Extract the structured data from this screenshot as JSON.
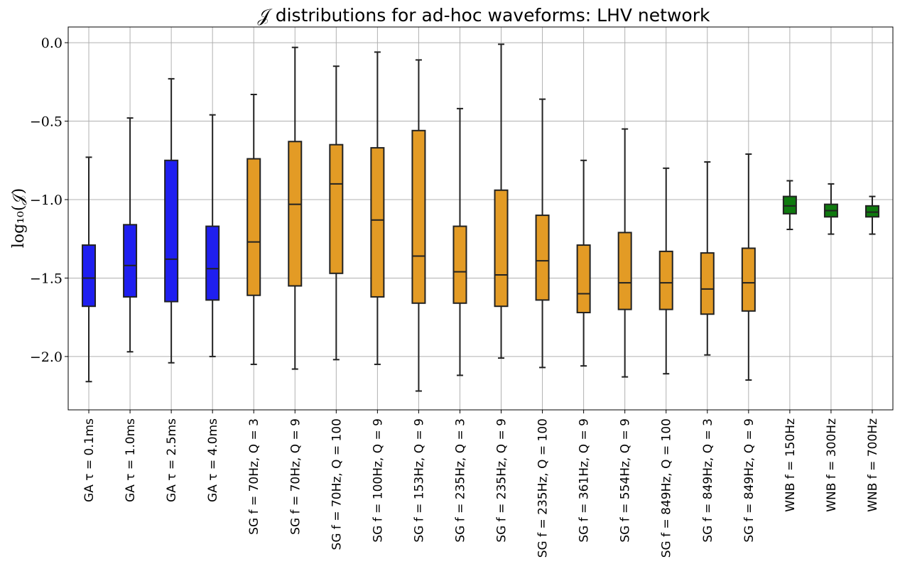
{
  "chart_data": {
    "type": "box",
    "title": "𝒥 distributions for ad-hoc waveforms: LHV network",
    "xlabel": "",
    "ylabel": "log₁₀(𝒥)",
    "ylim": [
      -2.34,
      0.1
    ],
    "yticks": [
      0.0,
      -0.5,
      -1.0,
      -1.5,
      -2.0
    ],
    "ytick_labels": [
      "0.0",
      "−0.5",
      "−1.0",
      "−1.5",
      "−2.0"
    ],
    "grid": true,
    "colors": {
      "GA": "#1f1ff0",
      "SG": "#e39b25",
      "WNB": "#0f7a0f",
      "edge": "#222222"
    },
    "categories": [
      "GA τ = 0.1ms",
      "GA τ = 1.0ms",
      "GA τ = 2.5ms",
      "GA τ = 4.0ms",
      "SG f = 70Hz, Q = 3",
      "SG f = 70Hz, Q = 9",
      "SG f = 70Hz, Q = 100",
      "SG f = 100Hz, Q = 9",
      "SG f = 153Hz, Q = 9",
      "SG f = 235Hz, Q = 3",
      "SG f = 235Hz, Q = 9",
      "SG f = 235Hz, Q = 100",
      "SG f = 361Hz, Q = 9",
      "SG f = 554Hz, Q = 9",
      "SG f = 849Hz, Q = 100",
      "SG f = 849Hz, Q = 3",
      "SG f = 849Hz, Q = 9",
      "WNB f = 150Hz",
      "WNB f = 300Hz",
      "WNB f = 700Hz"
    ],
    "groups": [
      "GA",
      "GA",
      "GA",
      "GA",
      "SG",
      "SG",
      "SG",
      "SG",
      "SG",
      "SG",
      "SG",
      "SG",
      "SG",
      "SG",
      "SG",
      "SG",
      "SG",
      "WNB",
      "WNB",
      "WNB"
    ],
    "boxes": [
      {
        "whislo": -2.16,
        "q1": -1.68,
        "med": -1.5,
        "q3": -1.29,
        "whishi": -0.73
      },
      {
        "whislo": -1.97,
        "q1": -1.62,
        "med": -1.42,
        "q3": -1.16,
        "whishi": -0.48
      },
      {
        "whislo": -2.04,
        "q1": -1.65,
        "med": -1.38,
        "q3": -0.75,
        "whishi": -0.23
      },
      {
        "whislo": -2.0,
        "q1": -1.64,
        "med": -1.44,
        "q3": -1.17,
        "whishi": -0.46
      },
      {
        "whislo": -2.05,
        "q1": -1.61,
        "med": -1.27,
        "q3": -0.74,
        "whishi": -0.33
      },
      {
        "whislo": -2.08,
        "q1": -1.55,
        "med": -1.03,
        "q3": -0.63,
        "whishi": -0.03
      },
      {
        "whislo": -2.02,
        "q1": -1.47,
        "med": -0.9,
        "q3": -0.65,
        "whishi": -0.15
      },
      {
        "whislo": -2.05,
        "q1": -1.62,
        "med": -1.13,
        "q3": -0.67,
        "whishi": -0.06
      },
      {
        "whislo": -2.22,
        "q1": -1.66,
        "med": -1.36,
        "q3": -0.56,
        "whishi": -0.11
      },
      {
        "whislo": -2.12,
        "q1": -1.66,
        "med": -1.46,
        "q3": -1.17,
        "whishi": -0.42
      },
      {
        "whislo": -2.01,
        "q1": -1.68,
        "med": -1.48,
        "q3": -0.94,
        "whishi": -0.01
      },
      {
        "whislo": -2.07,
        "q1": -1.64,
        "med": -1.39,
        "q3": -1.1,
        "whishi": -0.36
      },
      {
        "whislo": -2.06,
        "q1": -1.72,
        "med": -1.6,
        "q3": -1.29,
        "whishi": -0.75
      },
      {
        "whislo": -2.13,
        "q1": -1.7,
        "med": -1.53,
        "q3": -1.21,
        "whishi": -0.55
      },
      {
        "whislo": -2.11,
        "q1": -1.7,
        "med": -1.53,
        "q3": -1.33,
        "whishi": -0.8
      },
      {
        "whislo": -1.99,
        "q1": -1.73,
        "med": -1.57,
        "q3": -1.34,
        "whishi": -0.76
      },
      {
        "whislo": -2.15,
        "q1": -1.71,
        "med": -1.53,
        "q3": -1.31,
        "whishi": -0.71
      },
      {
        "whislo": -1.19,
        "q1": -1.09,
        "med": -1.04,
        "q3": -0.98,
        "whishi": -0.88
      },
      {
        "whislo": -1.22,
        "q1": -1.11,
        "med": -1.07,
        "q3": -1.03,
        "whishi": -0.9
      },
      {
        "whislo": -1.22,
        "q1": -1.11,
        "med": -1.08,
        "q3": -1.04,
        "whishi": -0.98
      }
    ]
  }
}
